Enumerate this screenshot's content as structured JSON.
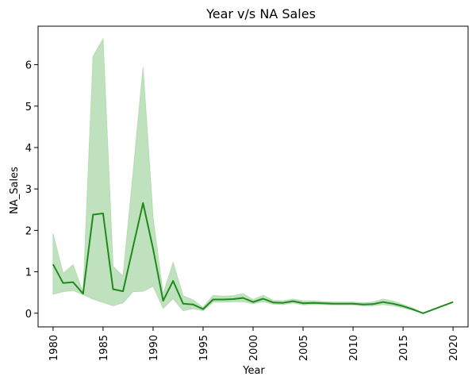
{
  "chart_data": {
    "type": "line",
    "title": "Year v/s NA Sales",
    "xlabel": "Year",
    "ylabel": "NA_Sales",
    "xlim": [
      1978.5,
      2021.5
    ],
    "ylim": [
      -0.33,
      6.93
    ],
    "xticks": [
      1980,
      1985,
      1990,
      1995,
      2000,
      2005,
      2010,
      2015,
      2020
    ],
    "yticks": [
      0,
      1,
      2,
      3,
      4,
      5,
      6
    ],
    "grid": false,
    "colors": {
      "line": "#1e8a1e",
      "band": "#b5dcb2"
    },
    "series": [
      {
        "x": [
          1980,
          1981,
          1982,
          1983,
          1984,
          1985,
          1986,
          1987,
          1988,
          1989,
          1990,
          1991,
          1992,
          1993,
          1994,
          1995,
          1996,
          1997,
          1998,
          1999,
          2000,
          2001,
          2002,
          2003,
          2004,
          2005,
          2006,
          2007,
          2008,
          2009,
          2010,
          2011,
          2012,
          2013,
          2014,
          2015,
          2016,
          2017,
          2020
        ],
        "values": [
          1.18,
          0.73,
          0.75,
          0.47,
          2.38,
          2.41,
          0.58,
          0.53,
          1.6,
          2.66,
          1.55,
          0.3,
          0.78,
          0.23,
          0.21,
          0.1,
          0.33,
          0.33,
          0.34,
          0.37,
          0.27,
          0.35,
          0.26,
          0.25,
          0.29,
          0.24,
          0.25,
          0.24,
          0.23,
          0.23,
          0.23,
          0.21,
          0.22,
          0.27,
          0.23,
          0.17,
          0.09,
          0.0,
          0.27
        ],
        "ci_low": [
          0.46,
          0.52,
          0.55,
          0.45,
          0.34,
          0.26,
          0.18,
          0.25,
          0.52,
          0.53,
          0.65,
          0.12,
          0.35,
          0.06,
          0.11,
          0.06,
          0.27,
          0.27,
          0.28,
          0.28,
          0.23,
          0.28,
          0.22,
          0.21,
          0.25,
          0.2,
          0.21,
          0.21,
          0.2,
          0.2,
          0.2,
          0.18,
          0.18,
          0.21,
          0.18,
          0.13,
          0.07,
          0.0,
          0.27
        ],
        "ci_high": [
          1.92,
          0.96,
          1.17,
          0.5,
          6.2,
          6.62,
          1.13,
          0.9,
          3.38,
          5.93,
          2.3,
          0.46,
          1.22,
          0.42,
          0.32,
          0.14,
          0.43,
          0.41,
          0.42,
          0.47,
          0.33,
          0.43,
          0.31,
          0.3,
          0.34,
          0.3,
          0.3,
          0.28,
          0.27,
          0.27,
          0.27,
          0.25,
          0.27,
          0.34,
          0.29,
          0.21,
          0.12,
          0.0,
          0.27
        ]
      }
    ]
  }
}
